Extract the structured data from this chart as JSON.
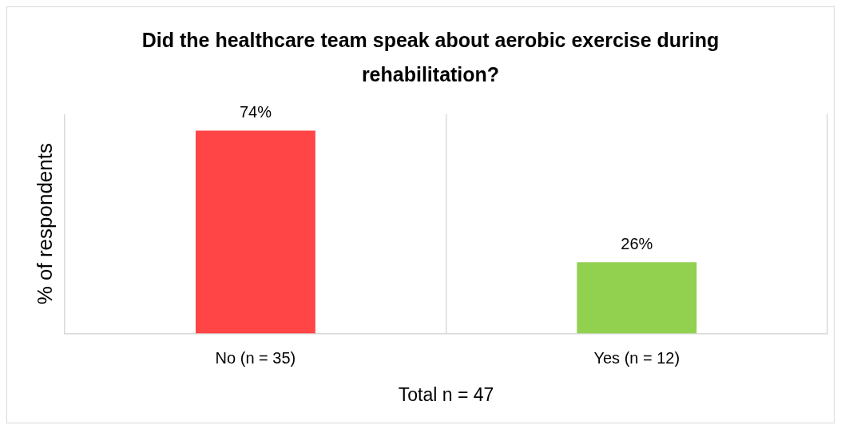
{
  "chart_data": {
    "type": "bar",
    "title": "Did the healthcare team speak about aerobic exercise during rehabilitation?",
    "ylabel": "% of respondents",
    "xlabel": "Total n = 47",
    "categories": [
      "No (n = 35)",
      "Yes (n = 12)"
    ],
    "values": [
      74,
      26
    ],
    "colors": [
      "#ff4545",
      "#92d050"
    ],
    "value_labels": [
      "74%",
      "26%"
    ],
    "grid": "x",
    "tick_labels": "x"
  }
}
